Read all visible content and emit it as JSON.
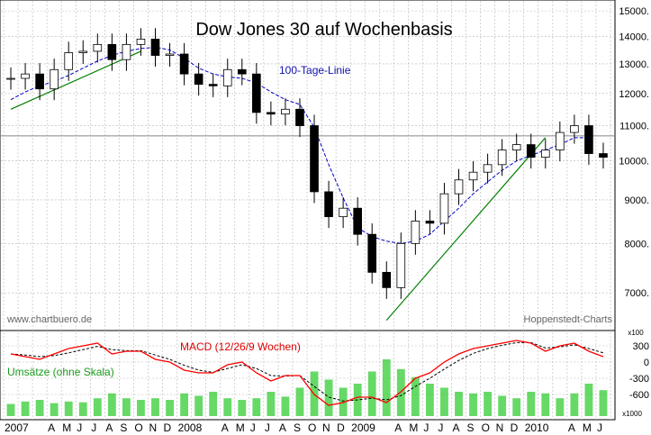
{
  "chart_data": [
    {
      "type": "candlestick",
      "title": "Dow Jones 30 auf Wochenbasis",
      "watermark": "www.chartbuero.de",
      "source": "Hoppenstedt-Charts",
      "y_scale": "log",
      "ylim": [
        6400,
        15300
      ],
      "y_ticks": [
        7000,
        8000,
        9000,
        10000,
        11000,
        12000,
        13000,
        14000,
        15000
      ],
      "y_tick_labels": [
        "7000.",
        "8000.",
        "9000.",
        "10000.",
        "11000.",
        "12000.",
        "13000.",
        "14000.",
        "15000."
      ],
      "horizontal_line": 10700,
      "x_range": [
        "2007-01",
        "2010-06"
      ],
      "x_tick_labels": [
        {
          "month": "2007-01",
          "label": "2007"
        },
        {
          "month": "2007-02",
          "label": ""
        },
        {
          "month": "2007-03",
          "label": ""
        },
        {
          "month": "2007-04",
          "label": "A"
        },
        {
          "month": "2007-05",
          "label": "M"
        },
        {
          "month": "2007-06",
          "label": "J"
        },
        {
          "month": "2007-07",
          "label": "J"
        },
        {
          "month": "2007-08",
          "label": "A"
        },
        {
          "month": "2007-09",
          "label": "S"
        },
        {
          "month": "2007-10",
          "label": "O"
        },
        {
          "month": "2007-11",
          "label": "N"
        },
        {
          "month": "2007-12",
          "label": "D"
        },
        {
          "month": "2008-01",
          "label": "2008"
        },
        {
          "month": "2008-02",
          "label": ""
        },
        {
          "month": "2008-03",
          "label": ""
        },
        {
          "month": "2008-04",
          "label": "A"
        },
        {
          "month": "2008-05",
          "label": "M"
        },
        {
          "month": "2008-06",
          "label": "J"
        },
        {
          "month": "2008-07",
          "label": "J"
        },
        {
          "month": "2008-08",
          "label": "A"
        },
        {
          "month": "2008-09",
          "label": "S"
        },
        {
          "month": "2008-10",
          "label": "O"
        },
        {
          "month": "2008-11",
          "label": "N"
        },
        {
          "month": "2008-12",
          "label": "D"
        },
        {
          "month": "2009-01",
          "label": "2009"
        },
        {
          "month": "2009-02",
          "label": ""
        },
        {
          "month": "2009-03",
          "label": ""
        },
        {
          "month": "2009-04",
          "label": "A"
        },
        {
          "month": "2009-05",
          "label": "M"
        },
        {
          "month": "2009-06",
          "label": "J"
        },
        {
          "month": "2009-07",
          "label": "J"
        },
        {
          "month": "2009-08",
          "label": "A"
        },
        {
          "month": "2009-09",
          "label": "S"
        },
        {
          "month": "2009-10",
          "label": "O"
        },
        {
          "month": "2009-11",
          "label": "N"
        },
        {
          "month": "2009-12",
          "label": "D"
        },
        {
          "month": "2010-01",
          "label": "2010"
        },
        {
          "month": "2010-02",
          "label": ""
        },
        {
          "month": "2010-03",
          "label": ""
        },
        {
          "month": "2010-04",
          "label": "A"
        },
        {
          "month": "2010-05",
          "label": "M"
        },
        {
          "month": "2010-06",
          "label": "J"
        }
      ],
      "price_series": [
        {
          "x": "2007-01",
          "close": 12500
        },
        {
          "x": "2007-02",
          "close": 12650
        },
        {
          "x": "2007-03",
          "close": 12150
        },
        {
          "x": "2007-04",
          "close": 12800
        },
        {
          "x": "2007-05",
          "close": 13400
        },
        {
          "x": "2007-06",
          "close": 13450
        },
        {
          "x": "2007-07",
          "close": 13700
        },
        {
          "x": "2007-08",
          "close": 13150
        },
        {
          "x": "2007-09",
          "close": 13700
        },
        {
          "x": "2007-10",
          "close": 13900
        },
        {
          "x": "2007-11",
          "close": 13300
        },
        {
          "x": "2007-12",
          "close": 13350
        },
        {
          "x": "2008-01",
          "close": 12650
        },
        {
          "x": "2008-02",
          "close": 12300
        },
        {
          "x": "2008-03",
          "close": 12250
        },
        {
          "x": "2008-04",
          "close": 12800
        },
        {
          "x": "2008-05",
          "close": 12650
        },
        {
          "x": "2008-06",
          "close": 11400
        },
        {
          "x": "2008-07",
          "close": 11350
        },
        {
          "x": "2008-08",
          "close": 11500
        },
        {
          "x": "2008-09",
          "close": 11000
        },
        {
          "x": "2008-10",
          "close": 9200
        },
        {
          "x": "2008-11",
          "close": 8600
        },
        {
          "x": "2008-12",
          "close": 8800
        },
        {
          "x": "2009-01",
          "close": 8200
        },
        {
          "x": "2009-02",
          "close": 7400
        },
        {
          "x": "2009-03",
          "close": 7100
        },
        {
          "x": "2009-04",
          "close": 8000
        },
        {
          "x": "2009-05",
          "close": 8500
        },
        {
          "x": "2009-06",
          "close": 8450
        },
        {
          "x": "2009-07",
          "close": 9150
        },
        {
          "x": "2009-08",
          "close": 9500
        },
        {
          "x": "2009-09",
          "close": 9700
        },
        {
          "x": "2009-10",
          "close": 9900
        },
        {
          "x": "2009-11",
          "close": 10300
        },
        {
          "x": "2009-12",
          "close": 10450
        },
        {
          "x": "2010-01",
          "close": 10100
        },
        {
          "x": "2010-02",
          "close": 10300
        },
        {
          "x": "2010-03",
          "close": 10800
        },
        {
          "x": "2010-04",
          "close": 11000
        },
        {
          "x": "2010-05",
          "close": 10200
        },
        {
          "x": "2010-06",
          "close": 10100
        }
      ],
      "moving_average": {
        "name": "100-Tage-Linie",
        "color": "#0000cc",
        "line_style": "dashed",
        "points": [
          {
            "x": "2007-01",
            "y": 11800
          },
          {
            "x": "2007-02",
            "y": 12050
          },
          {
            "x": "2007-03",
            "y": 12250
          },
          {
            "x": "2007-04",
            "y": 12400
          },
          {
            "x": "2007-05",
            "y": 12600
          },
          {
            "x": "2007-06",
            "y": 12850
          },
          {
            "x": "2007-07",
            "y": 13100
          },
          {
            "x": "2007-08",
            "y": 13300
          },
          {
            "x": "2007-09",
            "y": 13450
          },
          {
            "x": "2007-10",
            "y": 13550
          },
          {
            "x": "2007-11",
            "y": 13600
          },
          {
            "x": "2007-12",
            "y": 13500
          },
          {
            "x": "2008-01",
            "y": 13200
          },
          {
            "x": "2008-02",
            "y": 12850
          },
          {
            "x": "2008-03",
            "y": 12650
          },
          {
            "x": "2008-04",
            "y": 12550
          },
          {
            "x": "2008-05",
            "y": 12500
          },
          {
            "x": "2008-06",
            "y": 12350
          },
          {
            "x": "2008-07",
            "y": 12050
          },
          {
            "x": "2008-08",
            "y": 11800
          },
          {
            "x": "2008-09",
            "y": 11650
          },
          {
            "x": "2008-10",
            "y": 10950
          },
          {
            "x": "2008-11",
            "y": 9900
          },
          {
            "x": "2008-12",
            "y": 9050
          },
          {
            "x": "2009-01",
            "y": 8350
          },
          {
            "x": "2009-02",
            "y": 8150
          },
          {
            "x": "2009-03",
            "y": 8050
          },
          {
            "x": "2009-04",
            "y": 8000
          },
          {
            "x": "2009-05",
            "y": 8050
          },
          {
            "x": "2009-06",
            "y": 8200
          },
          {
            "x": "2009-07",
            "y": 8500
          },
          {
            "x": "2009-08",
            "y": 8800
          },
          {
            "x": "2009-09",
            "y": 9150
          },
          {
            "x": "2009-10",
            "y": 9450
          },
          {
            "x": "2009-11",
            "y": 9750
          },
          {
            "x": "2009-12",
            "y": 10000
          },
          {
            "x": "2010-01",
            "y": 10150
          },
          {
            "x": "2010-02",
            "y": 10300
          },
          {
            "x": "2010-03",
            "y": 10450
          },
          {
            "x": "2010-04",
            "y": 10650
          },
          {
            "x": "2010-05",
            "y": 10650
          }
        ]
      },
      "trendlines": [
        {
          "color": "#008000",
          "from": {
            "x": "2007-01",
            "y": 11500
          },
          "to": {
            "x": "2007-10",
            "y": 13450
          }
        },
        {
          "color": "#008000",
          "from": {
            "x": "2009-03",
            "y": 6500
          },
          "to": {
            "x": "2010-02",
            "y": 10650
          }
        }
      ]
    },
    {
      "type": "line",
      "title": "MACD (12/26/9 Wochen)",
      "volume_label": "Umsätze (ohne Skala)",
      "ylim": [
        -1000,
        500
      ],
      "y_ticks": [
        300,
        0,
        -300,
        -600
      ],
      "y_tick_labels": [
        "300",
        "0",
        "-300",
        "-600"
      ],
      "x100_label": "x100",
      "x1000_label": "x1000",
      "colors": {
        "macd": "#ff0000",
        "signal": "#000000",
        "volume": "#33cc33"
      },
      "macd": [
        {
          "x": "2007-01",
          "y": 150
        },
        {
          "x": "2007-02",
          "y": 100
        },
        {
          "x": "2007-03",
          "y": 50
        },
        {
          "x": "2007-04",
          "y": 150
        },
        {
          "x": "2007-05",
          "y": 250
        },
        {
          "x": "2007-06",
          "y": 300
        },
        {
          "x": "2007-07",
          "y": 350
        },
        {
          "x": "2007-08",
          "y": 150
        },
        {
          "x": "2007-09",
          "y": 200
        },
        {
          "x": "2007-10",
          "y": 200
        },
        {
          "x": "2007-11",
          "y": 50
        },
        {
          "x": "2007-12",
          "y": 0
        },
        {
          "x": "2008-01",
          "y": -150
        },
        {
          "x": "2008-02",
          "y": -200
        },
        {
          "x": "2008-03",
          "y": -200
        },
        {
          "x": "2008-04",
          "y": -50
        },
        {
          "x": "2008-05",
          "y": 0
        },
        {
          "x": "2008-06",
          "y": -200
        },
        {
          "x": "2008-07",
          "y": -350
        },
        {
          "x": "2008-08",
          "y": -250
        },
        {
          "x": "2008-09",
          "y": -250
        },
        {
          "x": "2008-10",
          "y": -600
        },
        {
          "x": "2008-11",
          "y": -800
        },
        {
          "x": "2008-12",
          "y": -750
        },
        {
          "x": "2009-01",
          "y": -650
        },
        {
          "x": "2009-02",
          "y": -650
        },
        {
          "x": "2009-03",
          "y": -750
        },
        {
          "x": "2009-04",
          "y": -550
        },
        {
          "x": "2009-05",
          "y": -300
        },
        {
          "x": "2009-06",
          "y": -200
        },
        {
          "x": "2009-07",
          "y": 0
        },
        {
          "x": "2009-08",
          "y": 150
        },
        {
          "x": "2009-09",
          "y": 250
        },
        {
          "x": "2009-10",
          "y": 300
        },
        {
          "x": "2009-11",
          "y": 350
        },
        {
          "x": "2009-12",
          "y": 400
        },
        {
          "x": "2010-01",
          "y": 350
        },
        {
          "x": "2010-02",
          "y": 200
        },
        {
          "x": "2010-03",
          "y": 300
        },
        {
          "x": "2010-04",
          "y": 350
        },
        {
          "x": "2010-05",
          "y": 200
        },
        {
          "x": "2010-06",
          "y": 100
        }
      ],
      "signal": [
        {
          "x": "2007-01",
          "y": 150
        },
        {
          "x": "2007-02",
          "y": 130
        },
        {
          "x": "2007-03",
          "y": 100
        },
        {
          "x": "2007-04",
          "y": 120
        },
        {
          "x": "2007-05",
          "y": 170
        },
        {
          "x": "2007-06",
          "y": 230
        },
        {
          "x": "2007-07",
          "y": 290
        },
        {
          "x": "2007-08",
          "y": 230
        },
        {
          "x": "2007-09",
          "y": 210
        },
        {
          "x": "2007-10",
          "y": 210
        },
        {
          "x": "2007-11",
          "y": 130
        },
        {
          "x": "2007-12",
          "y": 50
        },
        {
          "x": "2008-01",
          "y": -60
        },
        {
          "x": "2008-02",
          "y": -150
        },
        {
          "x": "2008-03",
          "y": -190
        },
        {
          "x": "2008-04",
          "y": -120
        },
        {
          "x": "2008-05",
          "y": -50
        },
        {
          "x": "2008-06",
          "y": -120
        },
        {
          "x": "2008-07",
          "y": -250
        },
        {
          "x": "2008-08",
          "y": -260
        },
        {
          "x": "2008-09",
          "y": -250
        },
        {
          "x": "2008-10",
          "y": -450
        },
        {
          "x": "2008-11",
          "y": -650
        },
        {
          "x": "2008-12",
          "y": -720
        },
        {
          "x": "2009-01",
          "y": -700
        },
        {
          "x": "2009-02",
          "y": -670
        },
        {
          "x": "2009-03",
          "y": -700
        },
        {
          "x": "2009-04",
          "y": -620
        },
        {
          "x": "2009-05",
          "y": -450
        },
        {
          "x": "2009-06",
          "y": -300
        },
        {
          "x": "2009-07",
          "y": -130
        },
        {
          "x": "2009-08",
          "y": 30
        },
        {
          "x": "2009-09",
          "y": 160
        },
        {
          "x": "2009-10",
          "y": 250
        },
        {
          "x": "2009-11",
          "y": 310
        },
        {
          "x": "2009-12",
          "y": 360
        },
        {
          "x": "2010-01",
          "y": 360
        },
        {
          "x": "2010-02",
          "y": 260
        },
        {
          "x": "2010-03",
          "y": 280
        },
        {
          "x": "2010-04",
          "y": 320
        },
        {
          "x": "2010-05",
          "y": 250
        },
        {
          "x": "2010-06",
          "y": 170
        }
      ],
      "volume_relative": [
        0.15,
        0.18,
        0.2,
        0.16,
        0.18,
        0.17,
        0.22,
        0.28,
        0.22,
        0.2,
        0.22,
        0.2,
        0.28,
        0.25,
        0.3,
        0.22,
        0.2,
        0.22,
        0.3,
        0.24,
        0.35,
        0.55,
        0.45,
        0.35,
        0.4,
        0.55,
        0.7,
        0.58,
        0.48,
        0.4,
        0.35,
        0.3,
        0.28,
        0.3,
        0.25,
        0.22,
        0.3,
        0.28,
        0.22,
        0.28,
        0.4,
        0.32
      ]
    }
  ]
}
